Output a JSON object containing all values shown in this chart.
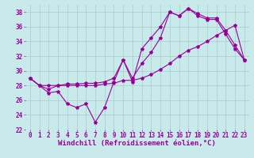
{
  "title": "",
  "xlabel": "Windchill (Refroidissement éolien,°C)",
  "background_color": "#c8eaea",
  "line_color": "#990099",
  "xlim": [
    -0.5,
    23.5
  ],
  "ylim": [
    22,
    39
  ],
  "yticks": [
    22,
    24,
    26,
    28,
    30,
    32,
    34,
    36,
    38
  ],
  "xticks": [
    0,
    1,
    2,
    3,
    4,
    5,
    6,
    7,
    8,
    9,
    10,
    11,
    12,
    13,
    14,
    15,
    16,
    17,
    18,
    19,
    20,
    21,
    22,
    23
  ],
  "line1_x": [
    0,
    1,
    2,
    3,
    4,
    5,
    6,
    7,
    8,
    9,
    10,
    11,
    12,
    13,
    14,
    15,
    16,
    17,
    18,
    19,
    20,
    21,
    22,
    23
  ],
  "line1_y": [
    29.0,
    28.0,
    27.0,
    27.2,
    25.5,
    25.0,
    25.5,
    23.0,
    25.0,
    28.5,
    31.5,
    28.5,
    33.0,
    34.5,
    36.0,
    38.0,
    37.5,
    38.5,
    37.5,
    37.0,
    37.0,
    35.0,
    33.0,
    31.5
  ],
  "line2_x": [
    0,
    1,
    2,
    3,
    4,
    5,
    6,
    7,
    8,
    9,
    10,
    11,
    12,
    13,
    14,
    15,
    16,
    17,
    18,
    19,
    20,
    21,
    22,
    23
  ],
  "line2_y": [
    29.0,
    28.0,
    28.0,
    28.0,
    28.0,
    28.0,
    28.0,
    28.0,
    28.2,
    28.3,
    28.7,
    28.7,
    29.0,
    29.5,
    30.2,
    31.0,
    32.0,
    32.8,
    33.3,
    34.0,
    34.8,
    35.5,
    36.2,
    31.5
  ],
  "line3_x": [
    0,
    1,
    2,
    3,
    4,
    5,
    6,
    7,
    8,
    9,
    10,
    11,
    12,
    13,
    14,
    15,
    16,
    17,
    18,
    19,
    20,
    21,
    22,
    23
  ],
  "line3_y": [
    29.0,
    28.0,
    27.5,
    28.0,
    28.2,
    28.2,
    28.3,
    28.3,
    28.5,
    29.0,
    31.5,
    29.0,
    31.0,
    32.5,
    34.5,
    38.0,
    37.5,
    38.5,
    37.8,
    37.2,
    37.2,
    35.5,
    33.5,
    31.5
  ],
  "grid_color": "#b0d0d0",
  "tick_fontsize": 5.5,
  "xlabel_fontsize": 6.5,
  "marker": "*",
  "markersize": 3.0,
  "linewidth": 0.8
}
